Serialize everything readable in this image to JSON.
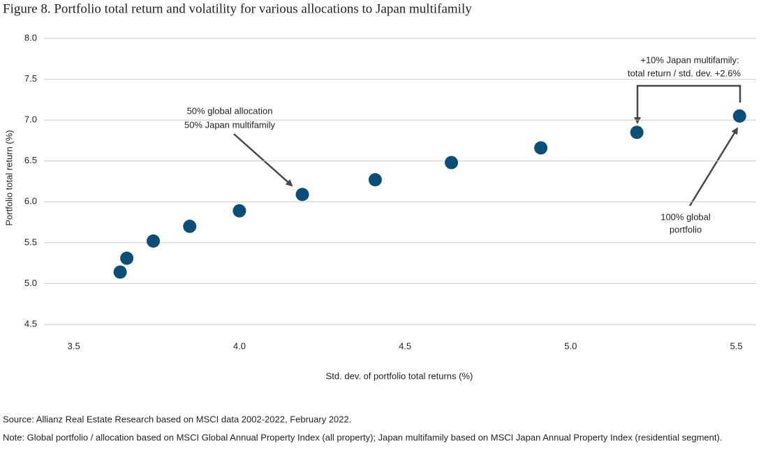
{
  "chart_data": {
    "type": "scatter",
    "title": "Figure 8. Portfolio total return and volatility for various allocations to Japan multifamily",
    "x_label": "Std. dev. of portfolio total returns (%)",
    "y_label": "Portfolio total return (%)",
    "x": [
      3.64,
      3.66,
      3.74,
      3.85,
      4.0,
      4.19,
      4.41,
      4.64,
      4.91,
      5.2,
      5.51
    ],
    "values": [
      5.14,
      5.31,
      5.52,
      5.7,
      5.89,
      6.09,
      6.27,
      6.48,
      6.66,
      6.85,
      7.05
    ],
    "color": "#0b4f78",
    "xlim": [
      3.41,
      5.56
    ],
    "xticks": [
      3.5,
      {
        "value": 4.0,
        "label": "4.0"
      },
      4.5,
      {
        "value": 5.0,
        "label": "5.0"
      },
      5.5
    ],
    "ylim": [
      4.5,
      8.0
    ],
    "yticks": [
      4.5,
      {
        "value": 5.0,
        "label": "5.0"
      },
      5.5,
      {
        "value": 6.0,
        "label": "6.0"
      },
      6.5,
      {
        "value": 7.0,
        "label": "7.0"
      },
      7.5,
      {
        "value": 8.0,
        "label": "8.0"
      }
    ],
    "grid": true,
    "annotations": [
      {
        "lines": [
          "50% global allocation",
          "50% Japan multifamily"
        ]
      },
      {
        "lines": [
          "+10% Japan multifamily:",
          "total return / std. dev. +2.6%"
        ]
      },
      {
        "lines": [
          "100% global",
          "portfolio"
        ]
      }
    ],
    "source": "Source: Allianz Real Estate Research based on MSCI data 2002-2022, February 2022.",
    "note": "Note: Global portfolio / allocation based on MSCI Global Annual Property Index (all property); Japan multifamily based on MSCI Japan Annual Property Index (residential segment)."
  }
}
